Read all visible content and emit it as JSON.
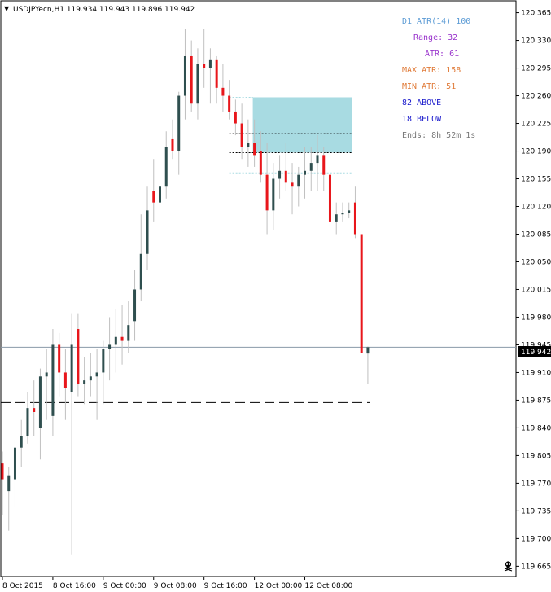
{
  "window": {
    "symbol_header": "USDJPYecn,H1  119.934 119.943 119.896 119.942",
    "menu_glyph": "▼"
  },
  "indicator": {
    "lines": [
      {
        "text": "D1 ATR(14) 100",
        "color": "#5b9bd5"
      },
      {
        "text": "Range: 32",
        "color": "#9933cc"
      },
      {
        "text": "ATR: 61",
        "color": "#9933cc"
      },
      {
        "text": "MAX ATR: 158",
        "color": "#e07b39"
      },
      {
        "text": "MIN ATR: 51",
        "color": "#e07b39"
      },
      {
        "text": "82 ABOVE",
        "color": "#1a1acc"
      },
      {
        "text": "18 BELOW",
        "color": "#1a1acc"
      },
      {
        "text": "Ends: 8h 52m 1s",
        "color": "#777777"
      }
    ]
  },
  "colors": {
    "bull": "#2f4f4f",
    "bear": "#e8161b",
    "wick": "#c0c0c0",
    "box": "#a8dbe2",
    "price_line": "#8a9aa8",
    "grid_axis": "#000000"
  },
  "icons": {
    "skull": "skull-icon"
  },
  "chart_data": {
    "type": "candlestick",
    "symbol": "USDJPYecn",
    "timeframe": "H1",
    "current_price": 119.942,
    "current_price_label": "119.942",
    "ylim": [
      119.652,
      120.38
    ],
    "y_ticks": [
      "120.365",
      "120.330",
      "120.295",
      "120.260",
      "120.225",
      "120.190",
      "120.155",
      "120.120",
      "120.085",
      "120.050",
      "120.015",
      "119.980",
      "119.945",
      "119.910",
      "119.875",
      "119.840",
      "119.805",
      "119.770",
      "119.735",
      "119.700",
      "119.665"
    ],
    "x_ticks": [
      "8 Oct 2015",
      "8 Oct 16:00",
      "9 Oct 00:00",
      "9 Oct 08:00",
      "9 Oct 16:00",
      "12 Oct 00:00",
      "12 Oct 08:00"
    ],
    "dashed_levels": [
      {
        "price": 120.212,
        "color": "#000000",
        "name": "box-top-level"
      },
      {
        "price": 120.188,
        "color": "#000000",
        "name": "box-mid-level"
      },
      {
        "price": 120.162,
        "color": "#a8dbe2",
        "name": "box-bottom-level"
      },
      {
        "price": 119.872,
        "color": "#000000",
        "name": "low-level"
      }
    ],
    "range_box": {
      "start_index": 40,
      "end_index": 55,
      "high": 120.258,
      "low": 120.188
    },
    "candles": [
      {
        "o": 119.795,
        "h": 119.81,
        "l": 119.73,
        "c": 119.775
      },
      {
        "o": 119.76,
        "h": 119.79,
        "l": 119.71,
        "c": 119.78
      },
      {
        "o": 119.775,
        "h": 119.825,
        "l": 119.74,
        "c": 119.815
      },
      {
        "o": 119.815,
        "h": 119.85,
        "l": 119.79,
        "c": 119.83
      },
      {
        "o": 119.83,
        "h": 119.885,
        "l": 119.82,
        "c": 119.865
      },
      {
        "o": 119.865,
        "h": 119.9,
        "l": 119.83,
        "c": 119.86
      },
      {
        "o": 119.84,
        "h": 119.915,
        "l": 119.8,
        "c": 119.905
      },
      {
        "o": 119.905,
        "h": 119.94,
        "l": 119.85,
        "c": 119.91
      },
      {
        "o": 119.855,
        "h": 119.965,
        "l": 119.83,
        "c": 119.945
      },
      {
        "o": 119.945,
        "h": 119.96,
        "l": 119.88,
        "c": 119.91
      },
      {
        "o": 119.91,
        "h": 119.94,
        "l": 119.85,
        "c": 119.89
      },
      {
        "o": 119.885,
        "h": 119.985,
        "l": 119.68,
        "c": 119.945
      },
      {
        "o": 119.965,
        "h": 119.985,
        "l": 119.88,
        "c": 119.895
      },
      {
        "o": 119.895,
        "h": 119.93,
        "l": 119.87,
        "c": 119.9
      },
      {
        "o": 119.9,
        "h": 119.935,
        "l": 119.88,
        "c": 119.905
      },
      {
        "o": 119.905,
        "h": 119.94,
        "l": 119.85,
        "c": 119.91
      },
      {
        "o": 119.91,
        "h": 119.95,
        "l": 119.87,
        "c": 119.94
      },
      {
        "o": 119.94,
        "h": 119.98,
        "l": 119.9,
        "c": 119.945
      },
      {
        "o": 119.945,
        "h": 119.99,
        "l": 119.91,
        "c": 119.955
      },
      {
        "o": 119.955,
        "h": 119.995,
        "l": 119.92,
        "c": 119.95
      },
      {
        "o": 119.95,
        "h": 120.0,
        "l": 119.935,
        "c": 119.97
      },
      {
        "o": 119.975,
        "h": 120.04,
        "l": 119.95,
        "c": 120.015
      },
      {
        "o": 120.015,
        "h": 120.11,
        "l": 120.0,
        "c": 120.06
      },
      {
        "o": 120.06,
        "h": 120.145,
        "l": 120.04,
        "c": 120.115
      },
      {
        "o": 120.14,
        "h": 120.18,
        "l": 120.1,
        "c": 120.125
      },
      {
        "o": 120.125,
        "h": 120.18,
        "l": 120.1,
        "c": 120.145
      },
      {
        "o": 120.145,
        "h": 120.215,
        "l": 120.13,
        "c": 120.195
      },
      {
        "o": 120.205,
        "h": 120.23,
        "l": 120.18,
        "c": 120.19
      },
      {
        "o": 120.19,
        "h": 120.265,
        "l": 120.16,
        "c": 120.26
      },
      {
        "o": 120.26,
        "h": 120.345,
        "l": 120.23,
        "c": 120.31
      },
      {
        "o": 120.31,
        "h": 120.33,
        "l": 120.24,
        "c": 120.25
      },
      {
        "o": 120.25,
        "h": 120.32,
        "l": 120.23,
        "c": 120.3
      },
      {
        "o": 120.3,
        "h": 120.345,
        "l": 120.27,
        "c": 120.295
      },
      {
        "o": 120.295,
        "h": 120.32,
        "l": 120.25,
        "c": 120.305
      },
      {
        "o": 120.305,
        "h": 120.31,
        "l": 120.25,
        "c": 120.27
      },
      {
        "o": 120.27,
        "h": 120.3,
        "l": 120.24,
        "c": 120.26
      },
      {
        "o": 120.26,
        "h": 120.28,
        "l": 120.23,
        "c": 120.24
      },
      {
        "o": 120.24,
        "h": 120.255,
        "l": 120.21,
        "c": 120.225
      },
      {
        "o": 120.225,
        "h": 120.25,
        "l": 120.18,
        "c": 120.195
      },
      {
        "o": 120.195,
        "h": 120.23,
        "l": 120.17,
        "c": 120.2
      },
      {
        "o": 120.2,
        "h": 120.23,
        "l": 120.17,
        "c": 120.185
      },
      {
        "o": 120.19,
        "h": 120.215,
        "l": 120.15,
        "c": 120.16
      },
      {
        "o": 120.16,
        "h": 120.2,
        "l": 120.085,
        "c": 120.115
      },
      {
        "o": 120.115,
        "h": 120.175,
        "l": 120.09,
        "c": 120.155
      },
      {
        "o": 120.155,
        "h": 120.185,
        "l": 120.13,
        "c": 120.165
      },
      {
        "o": 120.165,
        "h": 120.2,
        "l": 120.14,
        "c": 120.15
      },
      {
        "o": 120.15,
        "h": 120.175,
        "l": 120.11,
        "c": 120.145
      },
      {
        "o": 120.145,
        "h": 120.17,
        "l": 120.12,
        "c": 120.16
      },
      {
        "o": 120.16,
        "h": 120.195,
        "l": 120.13,
        "c": 120.165
      },
      {
        "o": 120.165,
        "h": 120.195,
        "l": 120.14,
        "c": 120.175
      },
      {
        "o": 120.175,
        "h": 120.21,
        "l": 120.14,
        "c": 120.185
      },
      {
        "o": 120.185,
        "h": 120.195,
        "l": 120.14,
        "c": 120.16
      },
      {
        "o": 120.16,
        "h": 120.17,
        "l": 120.095,
        "c": 120.1
      },
      {
        "o": 120.1,
        "h": 120.125,
        "l": 120.085,
        "c": 120.11
      },
      {
        "o": 120.11,
        "h": 120.125,
        "l": 120.1,
        "c": 120.112
      },
      {
        "o": 120.112,
        "h": 120.125,
        "l": 120.105,
        "c": 120.115
      },
      {
        "o": 120.125,
        "h": 120.145,
        "l": 120.08,
        "c": 120.085
      },
      {
        "o": 120.085,
        "h": 120.085,
        "l": 119.935,
        "c": 119.935
      },
      {
        "o": 119.934,
        "h": 119.943,
        "l": 119.896,
        "c": 119.942
      }
    ]
  }
}
